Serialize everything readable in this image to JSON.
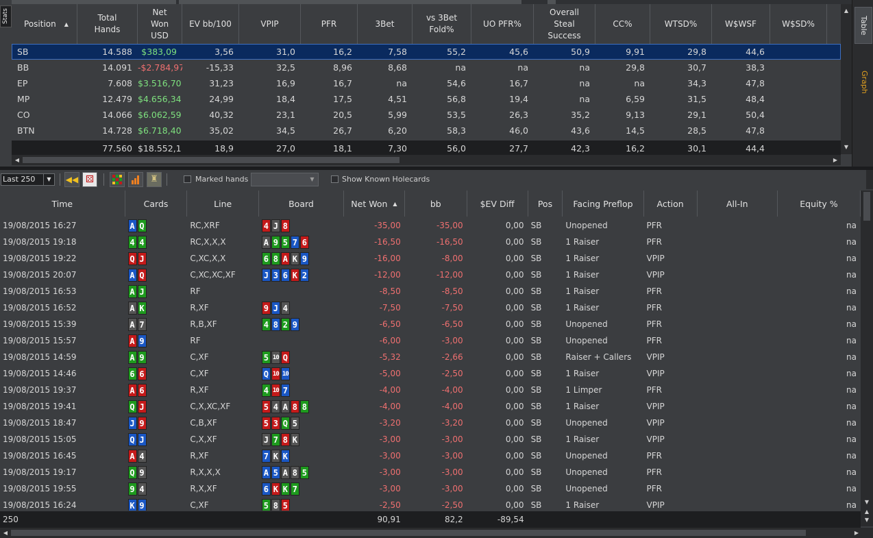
{
  "side_tabs": {
    "stats": "Stats",
    "table": "Table",
    "graph": "Graph"
  },
  "stats": {
    "columns": [
      "Position",
      "Total\nHands",
      "Net\nWon\nUSD",
      "EV bb/100",
      "VPIP",
      "PFR",
      "3Bet",
      "vs 3Bet\nFold%",
      "UO PFR%",
      "Overall\nSteal\nSuccess",
      "CC%",
      "WTSD%",
      "W$WSF",
      "W$SD%"
    ],
    "rows": [
      [
        "SB",
        "14.588",
        "$383,09",
        "3,56",
        "31,0",
        "16,2",
        "7,58",
        "55,2",
        "45,6",
        "50,9",
        "9,91",
        "29,8",
        "44,6",
        ""
      ],
      [
        "BB",
        "14.091",
        "-$2.784,97",
        "-15,33",
        "32,5",
        "8,96",
        "8,68",
        "na",
        "na",
        "na",
        "29,8",
        "30,7",
        "38,3",
        ""
      ],
      [
        "EP",
        "7.608",
        "$3.516,70",
        "31,23",
        "16,9",
        "16,7",
        "na",
        "54,6",
        "16,7",
        "na",
        "na",
        "34,3",
        "47,8",
        ""
      ],
      [
        "MP",
        "12.479",
        "$4.656,34",
        "24,99",
        "18,4",
        "17,5",
        "4,51",
        "56,8",
        "19,4",
        "na",
        "6,59",
        "31,5",
        "48,4",
        ""
      ],
      [
        "CO",
        "14.066",
        "$6.062,59",
        "40,32",
        "23,1",
        "20,5",
        "5,99",
        "53,5",
        "26,3",
        "35,2",
        "9,13",
        "29,1",
        "50,4",
        ""
      ],
      [
        "BTN",
        "14.728",
        "$6.718,40",
        "35,02",
        "34,5",
        "26,7",
        "6,20",
        "58,3",
        "46,0",
        "43,6",
        "14,5",
        "28,5",
        "47,8",
        ""
      ]
    ],
    "total": [
      "",
      "77.560",
      "$18.552,1",
      "18,9",
      "27,0",
      "18,1",
      "7,30",
      "56,0",
      "27,7",
      "42,3",
      "16,2",
      "30,1",
      "44,4",
      ""
    ]
  },
  "toolbar": {
    "range": "Last 250",
    "marked_label": "Marked hands",
    "marked_value": "",
    "known_label": "Show Known Holecards"
  },
  "hands": {
    "columns": [
      "Time",
      "Cards",
      "Line",
      "Board",
      "Net Won",
      "bb",
      "$EV Diff",
      "Pos",
      "Facing Preflop",
      "Action",
      "All-In",
      "Equity %"
    ],
    "rows": [
      {
        "time": "19/08/2015 16:27",
        "cards": [
          "Ad",
          "Qc"
        ],
        "line": "RC,XRF",
        "board": [
          "4h",
          "Js",
          "8h"
        ],
        "net": "-35,00",
        "bb": "-35,00",
        "ev": "0,00",
        "pos": "SB",
        "facing": "Unopened",
        "action": "PFR",
        "allin": "",
        "eq": "na"
      },
      {
        "time": "19/08/2015 19:18",
        "cards": [
          "4c",
          "4c"
        ],
        "line": "RC,X,X,X",
        "board": [
          "As",
          "9c",
          "5c",
          "7d",
          "6h"
        ],
        "net": "-16,50",
        "bb": "-16,50",
        "ev": "0,00",
        "pos": "SB",
        "facing": "1 Raiser",
        "action": "PFR",
        "allin": "",
        "eq": "na"
      },
      {
        "time": "19/08/2015 19:22",
        "cards": [
          "Qh",
          "Jh"
        ],
        "line": "C,XC,X,X",
        "board": [
          "6c",
          "8c",
          "Ah",
          "Ks",
          "9d"
        ],
        "net": "-16,00",
        "bb": "-8,00",
        "ev": "0,00",
        "pos": "SB",
        "facing": "1 Raiser",
        "action": "VPIP",
        "allin": "",
        "eq": "na"
      },
      {
        "time": "19/08/2015 20:07",
        "cards": [
          "Ad",
          "Qh"
        ],
        "line": "C,XC,XC,XF",
        "board": [
          "Jd",
          "3d",
          "6d",
          "Kh",
          "2d"
        ],
        "net": "-12,00",
        "bb": "-12,00",
        "ev": "0,00",
        "pos": "SB",
        "facing": "1 Raiser",
        "action": "VPIP",
        "allin": "",
        "eq": "na"
      },
      {
        "time": "19/08/2015 16:53",
        "cards": [
          "Ac",
          "Jc"
        ],
        "line": "RF",
        "board": [],
        "net": "-8,50",
        "bb": "-8,50",
        "ev": "0,00",
        "pos": "SB",
        "facing": "1 Raiser",
        "action": "PFR",
        "allin": "",
        "eq": "na"
      },
      {
        "time": "19/08/2015 16:52",
        "cards": [
          "As",
          "Kc"
        ],
        "line": "R,XF",
        "board": [
          "9h",
          "Jd",
          "4s"
        ],
        "net": "-7,50",
        "bb": "-7,50",
        "ev": "0,00",
        "pos": "SB",
        "facing": "1 Raiser",
        "action": "PFR",
        "allin": "",
        "eq": "na"
      },
      {
        "time": "19/08/2015 15:39",
        "cards": [
          "As",
          "7s"
        ],
        "line": "R,B,XF",
        "board": [
          "4c",
          "8d",
          "2c",
          "9d"
        ],
        "net": "-6,50",
        "bb": "-6,50",
        "ev": "0,00",
        "pos": "SB",
        "facing": "Unopened",
        "action": "PFR",
        "allin": "",
        "eq": "na"
      },
      {
        "time": "19/08/2015 15:57",
        "cards": [
          "Ah",
          "9d"
        ],
        "line": "RF",
        "board": [],
        "net": "-6,00",
        "bb": "-3,00",
        "ev": "0,00",
        "pos": "SB",
        "facing": "Unopened",
        "action": "PFR",
        "allin": "",
        "eq": "na"
      },
      {
        "time": "19/08/2015 14:59",
        "cards": [
          "Ac",
          "9c"
        ],
        "line": "C,XF",
        "board": [
          "5c",
          "10s",
          "Qh"
        ],
        "net": "-5,32",
        "bb": "-2,66",
        "ev": "0,00",
        "pos": "SB",
        "facing": "Raiser + Callers",
        "action": "VPIP",
        "allin": "",
        "eq": "na"
      },
      {
        "time": "19/08/2015 14:46",
        "cards": [
          "6c",
          "6h"
        ],
        "line": "C,XF",
        "board": [
          "Qd",
          "10h",
          "10d"
        ],
        "net": "-5,00",
        "bb": "-2,50",
        "ev": "0,00",
        "pos": "SB",
        "facing": "1 Raiser",
        "action": "VPIP",
        "allin": "",
        "eq": "na"
      },
      {
        "time": "19/08/2015 19:37",
        "cards": [
          "Ah",
          "6h"
        ],
        "line": "R,XF",
        "board": [
          "4c",
          "10h",
          "7d"
        ],
        "net": "-4,00",
        "bb": "-4,00",
        "ev": "0,00",
        "pos": "SB",
        "facing": "1 Limper",
        "action": "PFR",
        "allin": "",
        "eq": "na"
      },
      {
        "time": "19/08/2015 19:41",
        "cards": [
          "Qc",
          "Jh"
        ],
        "line": "C,X,XC,XF",
        "board": [
          "5h",
          "4s",
          "As",
          "8h",
          "8c"
        ],
        "net": "-4,00",
        "bb": "-4,00",
        "ev": "0,00",
        "pos": "SB",
        "facing": "1 Raiser",
        "action": "VPIP",
        "allin": "",
        "eq": "na"
      },
      {
        "time": "19/08/2015 18:47",
        "cards": [
          "Jd",
          "9h"
        ],
        "line": "C,B,XF",
        "board": [
          "5h",
          "3h",
          "Qc",
          "5s"
        ],
        "net": "-3,20",
        "bb": "-3,20",
        "ev": "0,00",
        "pos": "SB",
        "facing": "Unopened",
        "action": "VPIP",
        "allin": "",
        "eq": "na"
      },
      {
        "time": "19/08/2015 15:05",
        "cards": [
          "Qd",
          "Jd"
        ],
        "line": "C,X,XF",
        "board": [
          "Js",
          "7c",
          "8h",
          "Ks"
        ],
        "net": "-3,00",
        "bb": "-3,00",
        "ev": "0,00",
        "pos": "SB",
        "facing": "1 Raiser",
        "action": "VPIP",
        "allin": "",
        "eq": "na"
      },
      {
        "time": "19/08/2015 16:45",
        "cards": [
          "Ah",
          "4s"
        ],
        "line": "R,XF",
        "board": [
          "7d",
          "Ks",
          "Kd"
        ],
        "net": "-3,00",
        "bb": "-3,00",
        "ev": "0,00",
        "pos": "SB",
        "facing": "Unopened",
        "action": "PFR",
        "allin": "",
        "eq": "na"
      },
      {
        "time": "19/08/2015 19:17",
        "cards": [
          "Qc",
          "9s"
        ],
        "line": "R,X,X,X",
        "board": [
          "Ad",
          "5d",
          "As",
          "8s",
          "5c"
        ],
        "net": "-3,00",
        "bb": "-3,00",
        "ev": "0,00",
        "pos": "SB",
        "facing": "Unopened",
        "action": "PFR",
        "allin": "",
        "eq": "na"
      },
      {
        "time": "19/08/2015 19:55",
        "cards": [
          "9c",
          "4s"
        ],
        "line": "R,X,XF",
        "board": [
          "6d",
          "Kh",
          "Kc",
          "7c"
        ],
        "net": "-3,00",
        "bb": "-3,00",
        "ev": "0,00",
        "pos": "SB",
        "facing": "Unopened",
        "action": "PFR",
        "allin": "",
        "eq": "na"
      },
      {
        "time": "19/08/2015 16:24",
        "cards": [
          "Kd",
          "9d"
        ],
        "line": "C,XF",
        "board": [
          "5c",
          "8s",
          "5h"
        ],
        "net": "-2,50",
        "bb": "-2,50",
        "ev": "0,00",
        "pos": "SB",
        "facing": "1 Raiser",
        "action": "VPIP",
        "allin": "",
        "eq": "na"
      }
    ],
    "total": {
      "count": "250",
      "net": "90,91",
      "bb": "82,2",
      "ev": "-89,54"
    }
  },
  "colors": {
    "positive": "#7ee07e",
    "negative": "#f07070",
    "hearts": "#c41a1a",
    "diamonds": "#1a57c4",
    "clubs": "#1e9a1e",
    "spades": "#555555",
    "selected": "#0a2a5e"
  }
}
